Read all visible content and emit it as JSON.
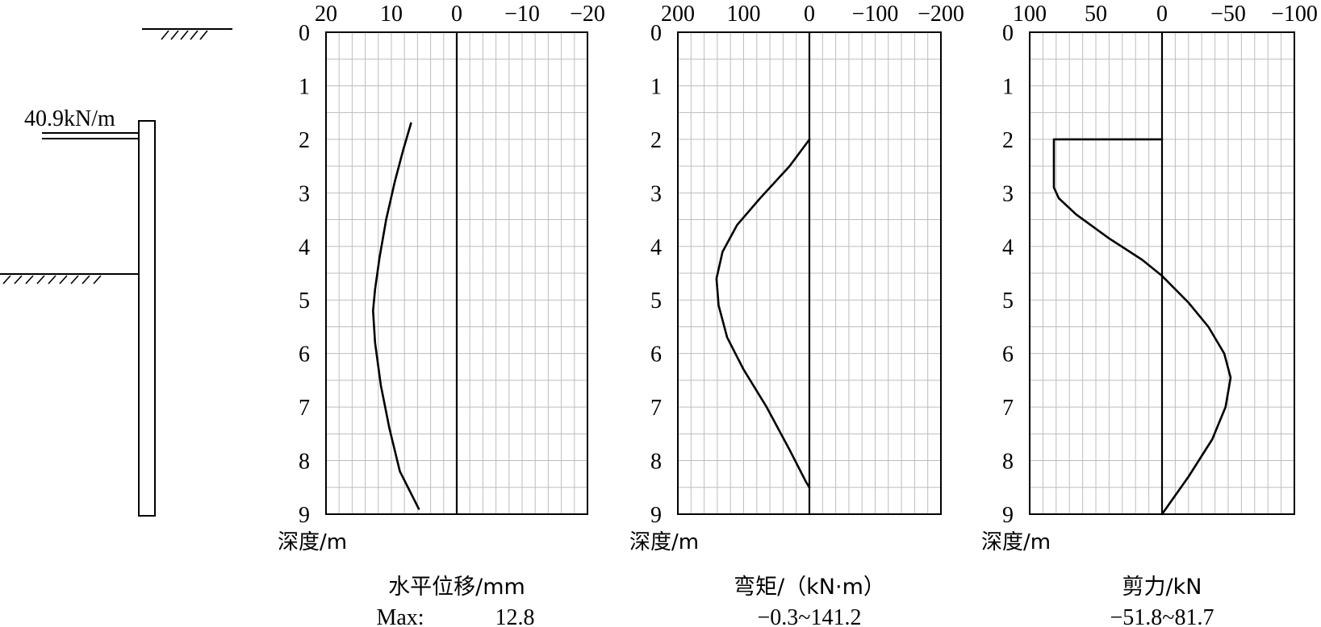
{
  "left_diagram": {
    "load_label": "40.9kN/m"
  },
  "chart_data": [
    {
      "type": "line",
      "ylabel": "深度/m",
      "xlabel": "水平位移/mm",
      "caption_left": "Max:",
      "caption_right": "12.8",
      "xlim": [
        20,
        -20
      ],
      "xticks": [
        20,
        10,
        0,
        -10,
        -20
      ],
      "xtick_labels": [
        "20",
        "10",
        "0",
        "−10",
        "−20"
      ],
      "ylim": [
        0,
        9
      ],
      "yticks": [
        0,
        1,
        2,
        3,
        4,
        5,
        6,
        7,
        8,
        9
      ],
      "ytick_labels": [
        "0",
        "1",
        "2",
        "3",
        "4",
        "5",
        "6",
        "7",
        "8",
        "9"
      ],
      "grid": true,
      "series": [
        {
          "points": [
            [
              7.0,
              1.7
            ],
            [
              8.2,
              2.2
            ],
            [
              9.5,
              2.8
            ],
            [
              10.8,
              3.5
            ],
            [
              11.8,
              4.2
            ],
            [
              12.5,
              4.8
            ],
            [
              12.8,
              5.2
            ],
            [
              12.5,
              5.8
            ],
            [
              11.6,
              6.6
            ],
            [
              10.3,
              7.4
            ],
            [
              8.7,
              8.2
            ],
            [
              5.8,
              8.9
            ]
          ]
        }
      ]
    },
    {
      "type": "line",
      "ylabel": "深度/m",
      "xlabel": "弯矩/（kN·m）",
      "caption_left": "",
      "caption_right": "−0.3~141.2",
      "xlim": [
        200,
        -200
      ],
      "xticks": [
        200,
        100,
        0,
        -100,
        -200
      ],
      "xtick_labels": [
        "200",
        "100",
        "0",
        "−100",
        "−200"
      ],
      "ylim": [
        0,
        9
      ],
      "yticks": [
        0,
        1,
        2,
        3,
        4,
        5,
        6,
        7,
        8,
        9
      ],
      "ytick_labels": [
        "0",
        "1",
        "2",
        "3",
        "4",
        "5",
        "6",
        "7",
        "8",
        "9"
      ],
      "grid": true,
      "series": [
        {
          "points": [
            [
              -0.3,
              2.0
            ],
            [
              30,
              2.5
            ],
            [
              75,
              3.1
            ],
            [
              110,
              3.6
            ],
            [
              132,
              4.1
            ],
            [
              141.2,
              4.6
            ],
            [
              138,
              5.1
            ],
            [
              125,
              5.7
            ],
            [
              100,
              6.3
            ],
            [
              65,
              7.0
            ],
            [
              30,
              7.8
            ],
            [
              5,
              8.4
            ],
            [
              0,
              8.5
            ]
          ]
        }
      ]
    },
    {
      "type": "line",
      "ylabel": "深度/m",
      "xlabel": "剪力/kN",
      "caption_left": "",
      "caption_right": "−51.8~81.7",
      "xlim": [
        100,
        -100
      ],
      "xticks": [
        100,
        50,
        0,
        -50,
        -100
      ],
      "xtick_labels": [
        "100",
        "50",
        "0",
        "−50",
        "−100"
      ],
      "ylim": [
        0,
        9
      ],
      "yticks": [
        0,
        1,
        2,
        3,
        4,
        5,
        6,
        7,
        8,
        9
      ],
      "ytick_labels": [
        "0",
        "1",
        "2",
        "3",
        "4",
        "5",
        "6",
        "7",
        "8",
        "9"
      ],
      "grid": true,
      "series": [
        {
          "points": [
            [
              0,
              2.0
            ],
            [
              81.7,
              2.0
            ],
            [
              81.7,
              2.9
            ],
            [
              78,
              3.1
            ],
            [
              65,
              3.4
            ],
            [
              40,
              3.85
            ],
            [
              15,
              4.25
            ],
            [
              0,
              4.55
            ],
            [
              -20,
              5.05
            ],
            [
              -35,
              5.5
            ],
            [
              -47,
              6.0
            ],
            [
              -51.8,
              6.45
            ],
            [
              -48,
              7.0
            ],
            [
              -38,
              7.6
            ],
            [
              -20,
              8.3
            ],
            [
              0,
              9.0
            ]
          ]
        }
      ]
    }
  ]
}
